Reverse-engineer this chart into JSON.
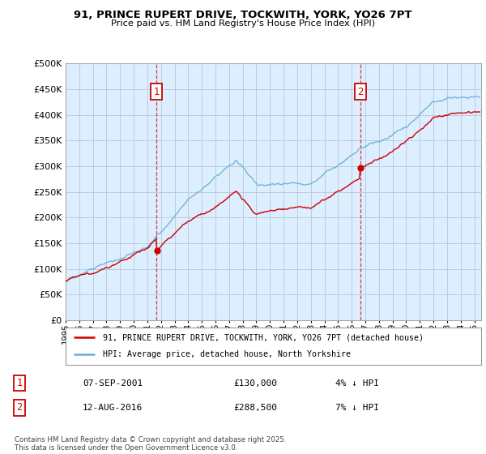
{
  "title": "91, PRINCE RUPERT DRIVE, TOCKWITH, YORK, YO26 7PT",
  "subtitle": "Price paid vs. HM Land Registry's House Price Index (HPI)",
  "ylim": [
    0,
    500000
  ],
  "yticks": [
    0,
    50000,
    100000,
    150000,
    200000,
    250000,
    300000,
    350000,
    400000,
    450000,
    500000
  ],
  "ytick_labels": [
    "£0",
    "£50K",
    "£100K",
    "£150K",
    "£200K",
    "£250K",
    "£300K",
    "£350K",
    "£400K",
    "£450K",
    "£500K"
  ],
  "xlim_start": 1995.0,
  "xlim_end": 2025.5,
  "hpi_color": "#6aaed6",
  "price_color": "#cc0000",
  "marker1_year": 2001.68,
  "marker2_year": 2016.62,
  "marker1_price": 130000,
  "marker2_price": 288500,
  "legend_line1": "91, PRINCE RUPERT DRIVE, TOCKWITH, YORK, YO26 7PT (detached house)",
  "legend_line2": "HPI: Average price, detached house, North Yorkshire",
  "table_row1_num": "1",
  "table_row1_date": "07-SEP-2001",
  "table_row1_price": "£130,000",
  "table_row1_hpi": "4% ↓ HPI",
  "table_row2_num": "2",
  "table_row2_date": "12-AUG-2016",
  "table_row2_price": "£288,500",
  "table_row2_hpi": "7% ↓ HPI",
  "footer": "Contains HM Land Registry data © Crown copyright and database right 2025.\nThis data is licensed under the Open Government Licence v3.0.",
  "background_color": "#ffffff",
  "plot_bg_color": "#ddeeff",
  "grid_color": "#bbccdd"
}
